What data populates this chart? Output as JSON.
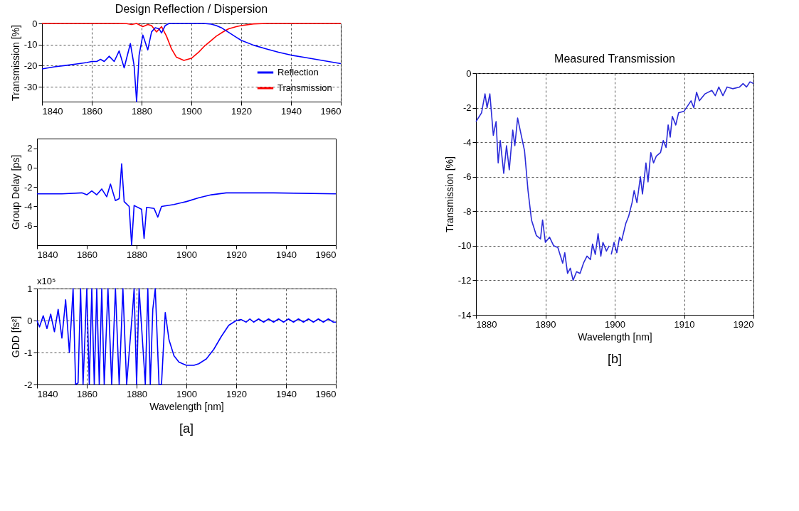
{
  "chart_data": [
    {
      "type": "line",
      "title": "Design Reflection / Dispersion",
      "ylabel": "Transmission [%]",
      "xlim": [
        1840,
        1960
      ],
      "ylim": [
        -37,
        0
      ],
      "xticks": [
        1840,
        1860,
        1880,
        1900,
        1920,
        1940,
        1960
      ],
      "yticks": [
        0,
        -10,
        -20,
        -30
      ],
      "grid": true,
      "legend": "bottom right",
      "series": [
        {
          "name": "Reflection",
          "color": "#0000ff",
          "x": [
            1840,
            1845,
            1850,
            1855,
            1858,
            1860,
            1862,
            1863.5,
            1865,
            1867,
            1869,
            1871,
            1873,
            1875.5,
            1877,
            1878,
            1879,
            1880.5,
            1882.5,
            1884,
            1885.5,
            1887,
            1888,
            1889.5,
            1891,
            1895,
            1900,
            1905,
            1908,
            1910,
            1912,
            1914,
            1916,
            1918,
            1920,
            1925,
            1930,
            1935,
            1940,
            1945,
            1950,
            1955,
            1960
          ],
          "values": [
            -21.5,
            -20.5,
            -19.8,
            -19,
            -18.5,
            -18,
            -18,
            -17,
            -18,
            -15.5,
            -18,
            -13,
            -21,
            -9.5,
            -20,
            -37,
            -15,
            -5.5,
            -12.5,
            -4,
            -2,
            -2.5,
            -4.5,
            -1,
            0,
            0,
            0,
            0,
            -0.3,
            -1,
            -2,
            -3.5,
            -5,
            -6.5,
            -8,
            -10.3,
            -12,
            -13.6,
            -15,
            -16,
            -17,
            -18,
            -19
          ]
        },
        {
          "name": "Transmission",
          "color": "#ff0000",
          "x": [
            1840,
            1870,
            1874,
            1876,
            1878,
            1880.5,
            1882.5,
            1884,
            1886,
            1888,
            1890,
            1892,
            1894,
            1897,
            1900,
            1903,
            1905,
            1908,
            1910,
            1913,
            1915,
            1918,
            1920,
            1925,
            1930,
            1960
          ],
          "values": [
            0,
            0,
            -0.1,
            -0.5,
            0,
            -1.5,
            -0.5,
            -1,
            -4,
            -1.5,
            -6,
            -12,
            -16,
            -17.5,
            -16.5,
            -13.5,
            -11,
            -8,
            -6,
            -3.8,
            -2.5,
            -1.5,
            -1,
            -0.2,
            0,
            0
          ]
        }
      ]
    },
    {
      "type": "line",
      "ylabel": "Group Delay [ps]",
      "xlim": [
        1840,
        1960
      ],
      "ylim": [
        -8,
        3
      ],
      "xticks": [
        1840,
        1860,
        1880,
        1900,
        1920,
        1940,
        1960
      ],
      "yticks": [
        2,
        0,
        -2,
        -4,
        -6
      ],
      "series": [
        {
          "color": "#0000ff",
          "x": [
            1840,
            1850,
            1858,
            1860,
            1862,
            1864,
            1866,
            1868,
            1869.5,
            1871.5,
            1873,
            1874,
            1875,
            1877,
            1878,
            1879,
            1882,
            1883,
            1884,
            1887,
            1888.5,
            1890,
            1895,
            1900,
            1905,
            1910,
            1916,
            1935,
            1960
          ],
          "values": [
            -2.7,
            -2.7,
            -2.6,
            -2.8,
            -2.4,
            -2.8,
            -2.2,
            -3,
            -1.7,
            -3.4,
            -3.2,
            0.4,
            -3.5,
            -4,
            -8,
            -3.9,
            -4.3,
            -7.3,
            -4.1,
            -4.2,
            -5.1,
            -4,
            -3.8,
            -3.5,
            -3.1,
            -2.8,
            -2.6,
            -2.6,
            -2.7
          ]
        }
      ]
    },
    {
      "type": "line",
      "ylabel": "GDD [fs²]",
      "xlabel": "Wavelength [nm]",
      "annotations": [
        "x10⁵",
        "[a]"
      ],
      "xlim": [
        1840,
        1960
      ],
      "ylim": [
        -2,
        1
      ],
      "xticks": [
        1840,
        1860,
        1880,
        1900,
        1920,
        1940,
        1960
      ],
      "yticks": [
        1,
        0,
        -1,
        -2
      ],
      "grid": true,
      "series": [
        {
          "color": "#0000ff",
          "x": [
            1840,
            1841,
            1842.5,
            1844,
            1845.5,
            1847,
            1848.5,
            1850,
            1851.5,
            1853,
            1854.5,
            1855.5,
            1856.5,
            1857.5,
            1858.5,
            1860,
            1861,
            1862,
            1863,
            1864,
            1865,
            1866,
            1867,
            1868.5,
            1870,
            1871.5,
            1873,
            1874.5,
            1876,
            1878.5,
            1879,
            1880,
            1881,
            1883.5,
            1884.5,
            1885.5,
            1886.5,
            1887.5,
            1889,
            1890,
            1891.5,
            1893,
            1895,
            1897,
            1900,
            1903,
            1905,
            1908,
            1911,
            1914,
            1917,
            1920,
            1922,
            1924,
            1925.5,
            1927,
            1929,
            1931,
            1933,
            1935,
            1937,
            1939,
            1941,
            1943,
            1945,
            1947,
            1949,
            1951,
            1953,
            1955,
            1957,
            1959,
            1960
          ],
          "values": [
            0,
            -0.2,
            0.15,
            -0.25,
            0.2,
            -0.35,
            0.35,
            -0.55,
            0.65,
            -1,
            1,
            -2,
            -1.95,
            1,
            -2,
            1,
            -2,
            1,
            -2,
            1,
            -2,
            1,
            -2,
            1,
            -2,
            1,
            -2,
            1,
            -2,
            0.45,
            1,
            -2,
            1,
            -2,
            1,
            -2,
            0.35,
            1,
            -2,
            -2,
            0.25,
            -0.6,
            -1.1,
            -1.3,
            -1.4,
            -1.4,
            -1.35,
            -1.2,
            -0.9,
            -0.5,
            -0.15,
            0,
            0.03,
            -0.05,
            0.05,
            -0.05,
            0.05,
            -0.05,
            0.05,
            -0.05,
            0.05,
            -0.05,
            0.05,
            -0.05,
            0.05,
            -0.05,
            0.05,
            -0.05,
            0.05,
            -0.05,
            0.05,
            -0.05,
            -0.05
          ]
        }
      ]
    },
    {
      "type": "line",
      "title": "Measured Transmission",
      "xlabel": "Wavelength [nm]",
      "ylabel": "Transmission [%]",
      "annotations": [
        "[b]"
      ],
      "xlim": [
        1880,
        1920
      ],
      "ylim": [
        -14,
        0
      ],
      "xticks": [
        1880,
        1890,
        1900,
        1910,
        1920
      ],
      "yticks": [
        0,
        -2,
        -4,
        -6,
        -8,
        -10,
        -12,
        -14
      ],
      "grid": true,
      "series": [
        {
          "color": "#2b2bd9",
          "x": [
            1880,
            1880.8,
            1881.3,
            1881.6,
            1882,
            1882.5,
            1882.9,
            1883.2,
            1883.5,
            1884,
            1884.4,
            1884.8,
            1885.3,
            1885.6,
            1886,
            1887,
            1887.5,
            1888,
            1888.7,
            1889.3,
            1889.6,
            1890,
            1890.6,
            1891.2,
            1891.8,
            1892.5,
            1892.8,
            1893.2,
            1893.6,
            1894,
            1894.5,
            1895,
            1895.5,
            1896,
            1896.5,
            1896.8,
            1897.2,
            1897.6,
            1898,
            1898.3,
            1898.8,
            1899.2,
            1899.35,
            1899.5,
            1899.9,
            1900.3,
            1900.7,
            1901,
            1901.6,
            1902,
            1902.5,
            1902.8,
            1903.2,
            1903.7,
            1904,
            1904.5,
            1904.8,
            1905.2,
            1905.6,
            1906,
            1906.6,
            1907,
            1907.4,
            1907.7,
            1908,
            1908.3,
            1908.8,
            1909.2,
            1910,
            1910.5,
            1911,
            1911.4,
            1911.8,
            1912.2,
            1913,
            1914,
            1914.5,
            1915,
            1915.6,
            1916.2,
            1917,
            1918,
            1918.5,
            1919,
            1919.5,
            1920
          ],
          "values": [
            -2.8,
            -2.3,
            -1.2,
            -2,
            -1.2,
            -3.6,
            -2.8,
            -5.2,
            -3.9,
            -5.8,
            -4.2,
            -5.6,
            -3.3,
            -4.2,
            -2.6,
            -4.5,
            -6.8,
            -8.5,
            -9.4,
            -9.6,
            -8.5,
            -9.8,
            -9.5,
            -10,
            -10.1,
            -11,
            -10.4,
            -11.6,
            -11.3,
            -12,
            -11.5,
            -11.6,
            -11,
            -10.6,
            -10.8,
            -9.9,
            -10.5,
            -9.3,
            -10.6,
            -9.8,
            -10.3,
            -10,
            null,
            -10.5,
            -9.8,
            -10.4,
            -9.5,
            -9.7,
            -8.7,
            -8.3,
            -7.5,
            -6.8,
            -7.5,
            -6,
            -7,
            -5.2,
            -6.3,
            -4.6,
            -5.2,
            -4.8,
            -4.6,
            -3.9,
            -4.3,
            -3,
            -3.7,
            -2.5,
            -3,
            -2.3,
            -2.2,
            -1.9,
            -1.6,
            -2,
            -1.1,
            -1.6,
            -1.2,
            -1,
            -1.3,
            -0.8,
            -1.3,
            -0.8,
            -0.9,
            -0.8,
            -0.6,
            -0.8,
            -0.5,
            -0.6
          ]
        }
      ]
    }
  ]
}
